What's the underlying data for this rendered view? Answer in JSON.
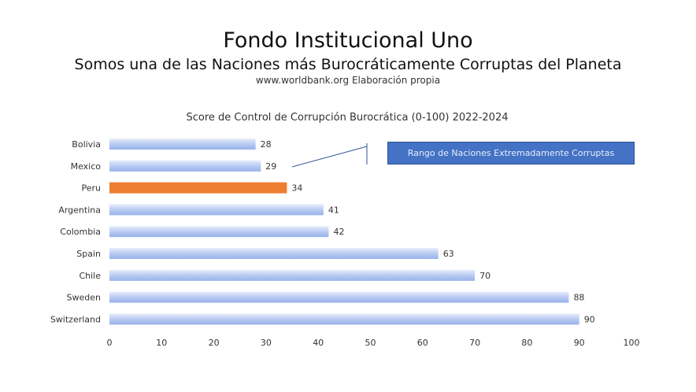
{
  "header": {
    "title": "Fondo Institucional Uno",
    "subtitle": "Somos una de las Naciones más Burocráticamente Corruptas del Planeta",
    "source": "www.worldbank.org Elaboración propia"
  },
  "chart_data": {
    "type": "bar",
    "orientation": "horizontal",
    "title": "Score de Control de Corrupción Burocrática (0-100) 2022-2024",
    "categories": [
      "Bolivia",
      "Mexico",
      "Peru",
      "Argentina",
      "Colombia",
      "Spain",
      "Chile",
      "Sweden",
      "Switzerland"
    ],
    "values": [
      28,
      29,
      34,
      41,
      42,
      63,
      70,
      88,
      90
    ],
    "xlim": [
      0,
      100
    ],
    "xticks": [
      0,
      10,
      20,
      30,
      40,
      50,
      60,
      70,
      80,
      90,
      100
    ],
    "grid": false,
    "highlight_category": "Peru",
    "colors": {
      "bar": "#b4c7f0",
      "highlight": "#ed7d31",
      "annotation_box": "#4472c4"
    },
    "annotation": {
      "text": "Rango de Naciones Extremadamente Corruptas"
    }
  }
}
